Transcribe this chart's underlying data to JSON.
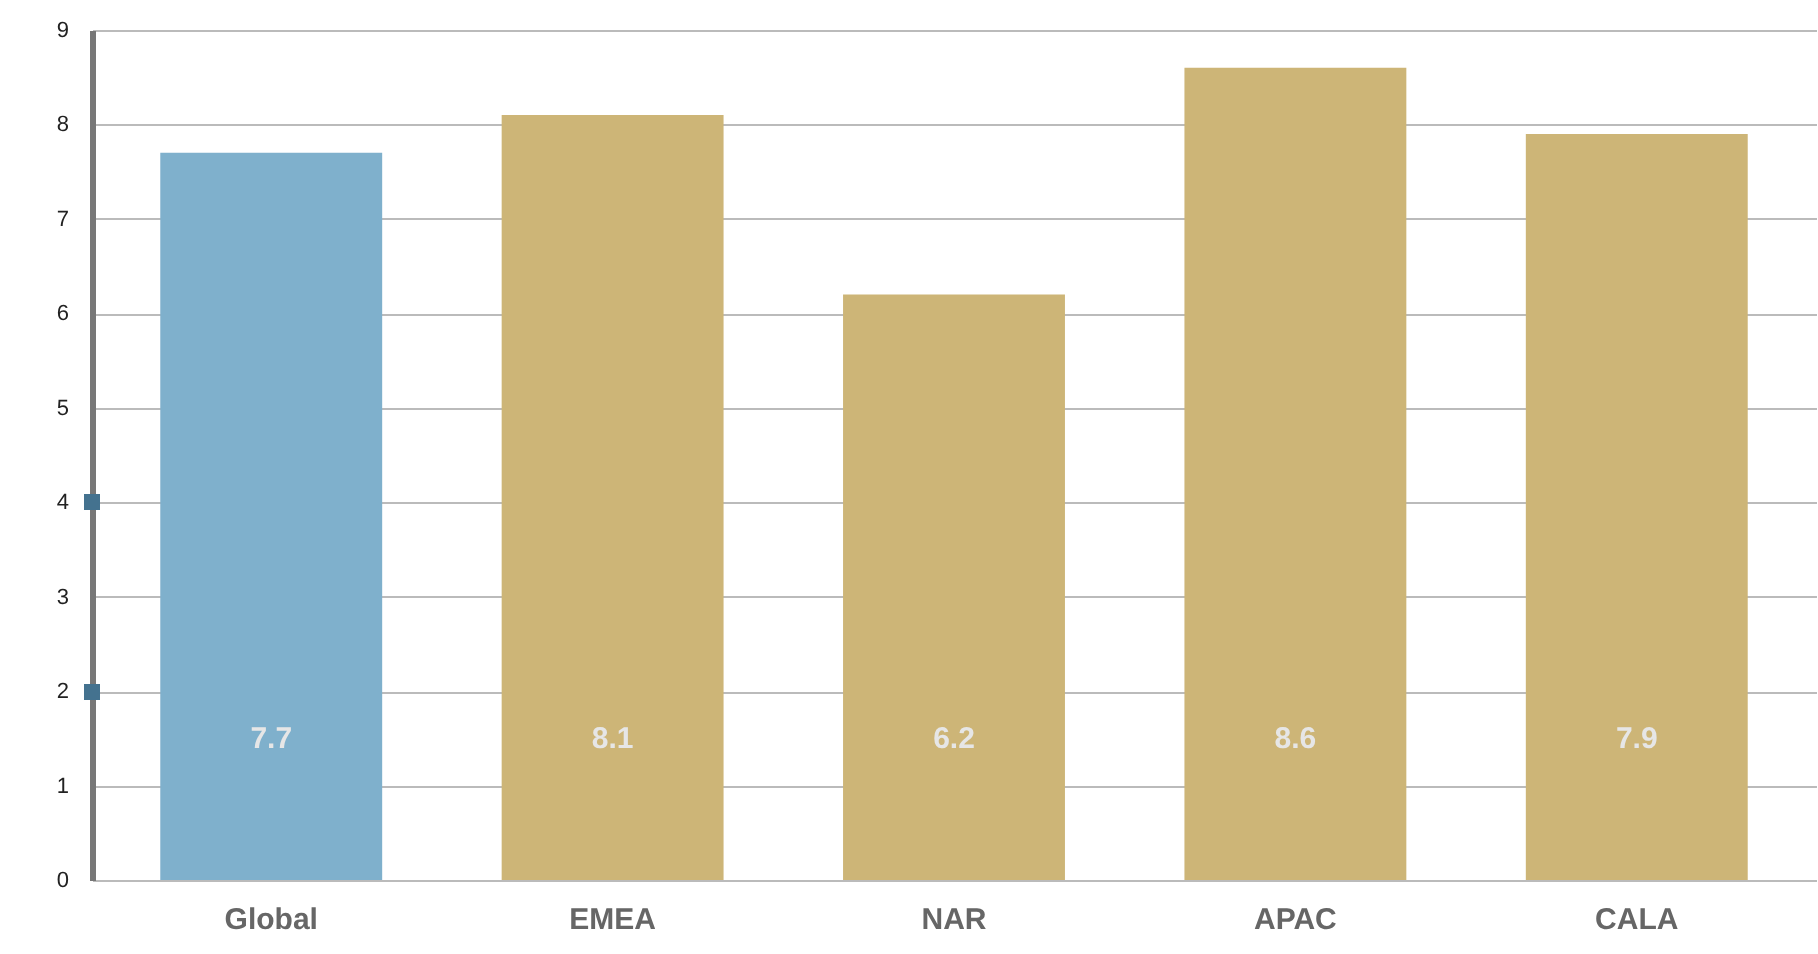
{
  "chart_data": {
    "type": "bar",
    "categories": [
      "Global",
      "EMEA",
      "NAR",
      "APAC",
      "CALA"
    ],
    "values": [
      7.7,
      8.1,
      6.2,
      8.6,
      7.9
    ],
    "colors": [
      "#7fb0cc",
      "#cdb577",
      "#cdb577",
      "#cdb577",
      "#cdb577"
    ],
    "ylim": [
      0,
      9
    ],
    "yticks": [
      0,
      1,
      2,
      3,
      4,
      5,
      6,
      7,
      8,
      9
    ],
    "grid": "y",
    "data_labels": true
  }
}
